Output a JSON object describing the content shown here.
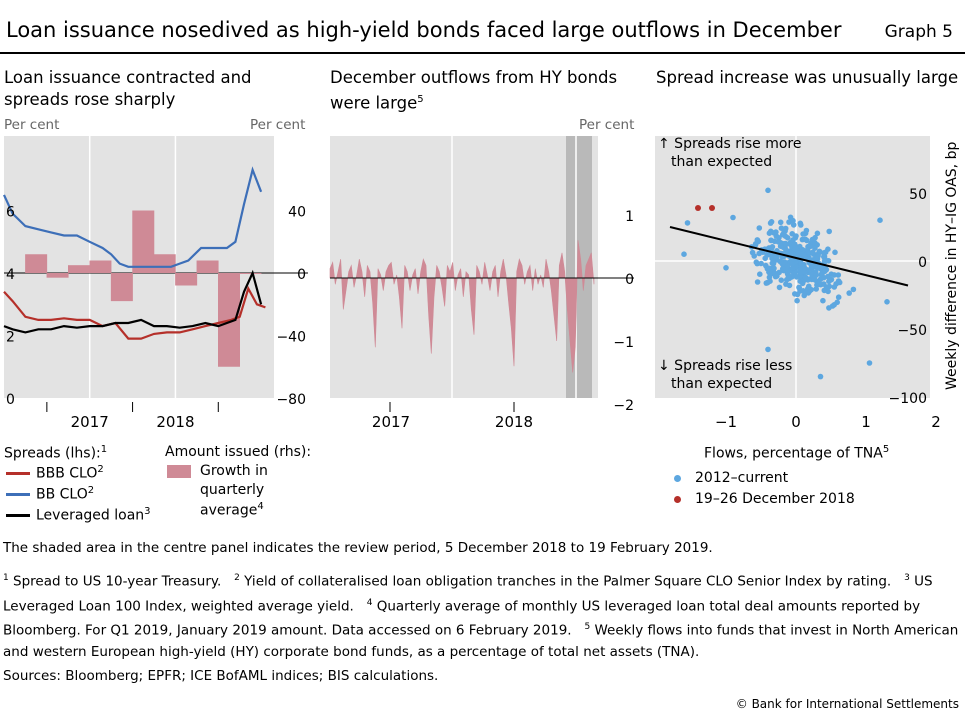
{
  "title": "Loan issuance nosedived as high-yield bonds faced large outflows in December",
  "graph_label": "Graph 5",
  "panels": {
    "left": {
      "title_line1": "Loan issuance contracted and",
      "title_line2": "spreads rose sharply",
      "unit_left": "Per cent",
      "unit_right": "Per cent"
    },
    "middle": {
      "title_line1": "December outflows from HY bonds",
      "title_line2": "were large",
      "title_sup": "5",
      "unit_right": "Per cent"
    },
    "right": {
      "title": "Spread increase was unusually large",
      "annot_top_1": "↑ Spreads rise more",
      "annot_top_2": "than expected",
      "annot_bot_1": "↓ Spreads rise less",
      "annot_bot_2": "than expected",
      "ylabel": "Weekly difference in HY–IG OAS, bp",
      "xlabel": "Flows, percentage of TNA",
      "xlabel_sup": "5"
    }
  },
  "legend": {
    "spreads_header": "Spreads (lhs):",
    "spreads_sup": "1",
    "bbb": "BBB CLO",
    "bbb_sup": "2",
    "bb": "BB CLO",
    "bb_sup": "2",
    "lev": "Leveraged loan",
    "lev_sup": "3",
    "amount_header": "Amount issued (rhs):",
    "growth_1": "Growth in",
    "growth_2": "quarterly",
    "growth_3": "average",
    "growth_sup": "4",
    "scatter_a": "2012–current",
    "scatter_b": "19–26 December 2018"
  },
  "colors": {
    "bbb": "#b5302a",
    "bb": "#3d6fb8",
    "lev": "#000000",
    "bars": "#cf8a96",
    "panel_bg": "#e3e3e3",
    "scatter_a": "#5da7e0",
    "scatter_b": "#b5302a",
    "review": "#b9b9b9"
  },
  "notes": {
    "shaded": "The shaded area in the centre panel indicates the review period, 5 December 2018 to 19 February 2019.",
    "footnote_1": "Spread to US 10-year Treasury.",
    "footnote_2": "Yield of collateralised loan obligation tranches in the Palmer Square CLO Senior Index by rating.",
    "footnote_3": "US Leveraged Loan 100 Index, weighted average yield.",
    "footnote_4": "Quarterly average of monthly US leveraged loan total deal amounts reported by Bloomberg. For Q1 2019, January 2019 amount. Data accessed on 6 February 2019.",
    "footnote_5": "Weekly flows into funds that invest in North American and western European high-yield (HY) corporate bond funds, as a percentage of total net assets (TNA).",
    "sources": "Sources: Bloomberg; EPFR; ICE BofAML indices; BIS calculations.",
    "copyright": "© Bank for International Settlements"
  },
  "chart_data": [
    {
      "type": "line",
      "title": "Loan issuance contracted and spreads rose sharply",
      "x_ticks": [
        "2017",
        "2018"
      ],
      "y_left": {
        "ticks": [
          0,
          2,
          4,
          6
        ],
        "ylim": [
          0,
          8
        ]
      },
      "y_right": {
        "ticks": [
          -80,
          -40,
          0,
          40
        ],
        "ylim": [
          -80,
          80
        ]
      },
      "series": [
        {
          "name": "BBB CLO",
          "axis": "left",
          "x": [
            2016.0,
            2016.1,
            2016.25,
            2016.4,
            2016.55,
            2016.7,
            2016.85,
            2017.0,
            2017.15,
            2017.3,
            2017.45,
            2017.6,
            2017.75,
            2017.9,
            2018.05,
            2018.2,
            2018.35,
            2018.5,
            2018.65,
            2018.75,
            2018.85,
            2018.95,
            2019.05
          ],
          "values": [
            3.4,
            3.1,
            2.6,
            2.5,
            2.5,
            2.55,
            2.5,
            2.5,
            2.3,
            2.4,
            1.9,
            1.9,
            2.05,
            2.1,
            2.1,
            2.2,
            2.3,
            2.4,
            2.5,
            2.6,
            3.5,
            3.0,
            2.9
          ]
        },
        {
          "name": "BB CLO",
          "axis": "left",
          "x": [
            2016.0,
            2016.1,
            2016.25,
            2016.4,
            2016.55,
            2016.7,
            2016.85,
            2017.0,
            2017.15,
            2017.25,
            2017.35,
            2017.45,
            2017.55,
            2017.65,
            2017.8,
            2017.95,
            2018.05,
            2018.15,
            2018.3,
            2018.45,
            2018.6,
            2018.7,
            2018.8,
            2018.9,
            2019.0
          ],
          "values": [
            6.5,
            5.9,
            5.5,
            5.4,
            5.3,
            5.2,
            5.2,
            5.0,
            4.8,
            4.6,
            4.3,
            4.2,
            4.2,
            4.2,
            4.2,
            4.2,
            4.3,
            4.4,
            4.8,
            4.8,
            4.8,
            5.0,
            6.2,
            7.3,
            6.6
          ]
        },
        {
          "name": "Leveraged loan",
          "axis": "left",
          "x": [
            2016.0,
            2016.1,
            2016.25,
            2016.4,
            2016.55,
            2016.7,
            2016.85,
            2017.0,
            2017.15,
            2017.3,
            2017.45,
            2017.6,
            2017.75,
            2017.9,
            2018.05,
            2018.2,
            2018.35,
            2018.5,
            2018.6,
            2018.7,
            2018.8,
            2018.9,
            2019.0
          ],
          "values": [
            2.3,
            2.2,
            2.1,
            2.2,
            2.2,
            2.3,
            2.25,
            2.3,
            2.3,
            2.4,
            2.4,
            2.5,
            2.3,
            2.3,
            2.25,
            2.3,
            2.4,
            2.3,
            2.4,
            2.5,
            3.4,
            4.0,
            3.0
          ]
        }
      ],
      "bars": {
        "name": "Growth in quarterly average",
        "axis": "right",
        "x": [
          2016.375,
          2016.625,
          2016.875,
          2017.125,
          2017.375,
          2017.625,
          2017.875,
          2018.125,
          2018.375,
          2018.625,
          2018.875
        ],
        "values": [
          12,
          -3,
          5,
          8,
          -18,
          40,
          12,
          -8,
          8,
          -60,
          0
        ]
      }
    },
    {
      "type": "area",
      "title": "December outflows from HY bonds were large",
      "x_ticks": [
        "2017",
        "2018"
      ],
      "y_right": {
        "ticks": [
          -2,
          -1,
          0,
          1
        ],
        "ylim": [
          -2,
          2
        ]
      },
      "review_period": [
        "5 December 2018",
        "19 February 2019"
      ],
      "series": [
        {
          "name": "",
          "values": [
            0.15,
            0.25,
            -0.1,
            0.1,
            0.3,
            -0.5,
            -0.2,
            0.1,
            0.2,
            -0.15,
            0.05,
            0.3,
            0.1,
            -0.3,
            0.2,
            0.1,
            -0.4,
            -1.1,
            0.15,
            0.05,
            -0.2,
            0.1,
            0.2,
            0.25,
            -0.1,
            0.05,
            -0.3,
            -0.8,
            0.2,
            0.1,
            -0.2,
            0.05,
            0.15,
            -0.25,
            0.1,
            0.3,
            0.2,
            -0.6,
            -1.2,
            -0.3,
            0.2,
            0.1,
            -0.15,
            -0.45,
            0.2,
            0.1,
            0.25,
            -0.2,
            0.05,
            0.15,
            -0.3,
            0.1,
            0.05,
            -0.5,
            -0.9,
            0.2,
            0.1,
            -0.1,
            0.25,
            0.05,
            -0.2,
            0.1,
            0.2,
            -0.3,
            0.1,
            0.3,
            0.05,
            -0.4,
            -0.8,
            -1.4,
            0.1,
            0.3,
            0.2,
            -0.1,
            0.1,
            0.2,
            -0.2,
            0.15,
            -0.1,
            0.05,
            -0.15,
            0.3,
            0.1,
            -0.2,
            -0.6,
            -1.0,
            0.2,
            0.4,
            0.1,
            -0.5,
            -1.0,
            -1.5,
            -1.1,
            0.6,
            0.3,
            -0.2,
            0.2,
            0.3,
            0.4,
            -0.1
          ]
        }
      ]
    },
    {
      "type": "scatter",
      "title": "Spread increase was unusually large",
      "xlabel": "Flows, percentage of TNA",
      "ylabel": "Weekly difference in HY–IG OAS, bp",
      "xlim": [
        -2,
        2
      ],
      "ylim": [
        -100,
        100
      ],
      "x_ticks": [
        -1,
        0,
        1,
        2
      ],
      "y_ticks": [
        -100,
        -50,
        0,
        50
      ],
      "fit_line": {
        "x": [
          -1.8,
          1.6
        ],
        "y": [
          25,
          -18
        ]
      },
      "series": [
        {
          "name": "2012–current",
          "points": []
        },
        {
          "name": "19–26 December 2018",
          "points": [
            [
              -1.4,
              39
            ],
            [
              -1.2,
              39
            ]
          ]
        }
      ]
    }
  ]
}
